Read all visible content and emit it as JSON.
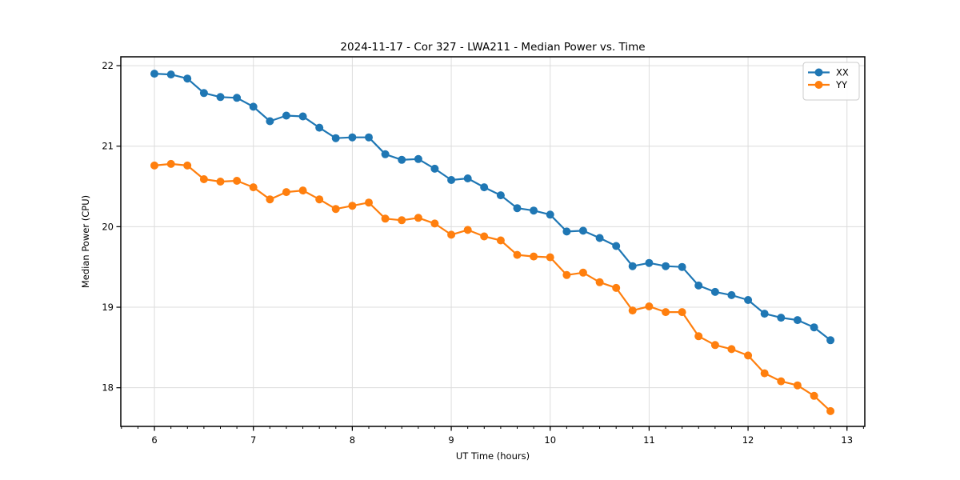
{
  "figure": {
    "background": "#ffffff"
  },
  "chart_data": {
    "type": "line",
    "title": "2024-11-17 - Cor 327 - LWA211 - Median Power vs. Time",
    "xlabel": "UT Time (hours)",
    "ylabel": "Median Power (CPU)",
    "xlim": [
      5.66,
      13.18
    ],
    "ylim": [
      17.52,
      22.11
    ],
    "xticks": [
      6,
      7,
      8,
      9,
      10,
      11,
      12,
      13
    ],
    "yticks": [
      18,
      19,
      20,
      21,
      22
    ],
    "x_minor_step": 0.166667,
    "grid": true,
    "legend_position": "upper right",
    "x": [
      6.0,
      6.167,
      6.333,
      6.5,
      6.667,
      6.833,
      7.0,
      7.167,
      7.333,
      7.5,
      7.667,
      7.833,
      8.0,
      8.167,
      8.333,
      8.5,
      8.667,
      8.833,
      9.0,
      9.167,
      9.333,
      9.5,
      9.667,
      9.833,
      10.0,
      10.167,
      10.333,
      10.5,
      10.667,
      10.833,
      11.0,
      11.167,
      11.333,
      11.5,
      11.667,
      11.833,
      12.0,
      12.167,
      12.333,
      12.5,
      12.667,
      12.833
    ],
    "series": [
      {
        "name": "XX",
        "color": "#1f77b4",
        "values": [
          21.9,
          21.89,
          21.84,
          21.66,
          21.61,
          21.6,
          21.49,
          21.31,
          21.38,
          21.37,
          21.23,
          21.1,
          21.11,
          21.11,
          20.9,
          20.83,
          20.84,
          20.72,
          20.58,
          20.6,
          20.49,
          20.39,
          20.23,
          20.2,
          20.15,
          19.94,
          19.95,
          19.86,
          19.76,
          19.51,
          19.55,
          19.51,
          19.5,
          19.27,
          19.19,
          19.15,
          19.09,
          18.92,
          18.87,
          18.84,
          18.75,
          18.59
        ]
      },
      {
        "name": "YY",
        "color": "#ff7f0e",
        "values": [
          20.76,
          20.78,
          20.76,
          20.59,
          20.56,
          20.57,
          20.49,
          20.34,
          20.43,
          20.45,
          20.34,
          20.22,
          20.26,
          20.3,
          20.1,
          20.08,
          20.11,
          20.04,
          19.9,
          19.96,
          19.88,
          19.83,
          19.65,
          19.63,
          19.62,
          19.4,
          19.43,
          19.31,
          19.24,
          18.96,
          19.01,
          18.94,
          18.94,
          18.64,
          18.53,
          18.48,
          18.4,
          18.18,
          18.08,
          18.03,
          17.9,
          17.71
        ]
      }
    ]
  },
  "style": {
    "grid_color": "#dcdcdc",
    "spine_color": "#000000",
    "tick_color": "#000000",
    "text_color": "#000000",
    "legend_border": "#cccccc",
    "legend_bg": "#ffffff",
    "marker_radius": 5,
    "line_width": 2.2
  }
}
